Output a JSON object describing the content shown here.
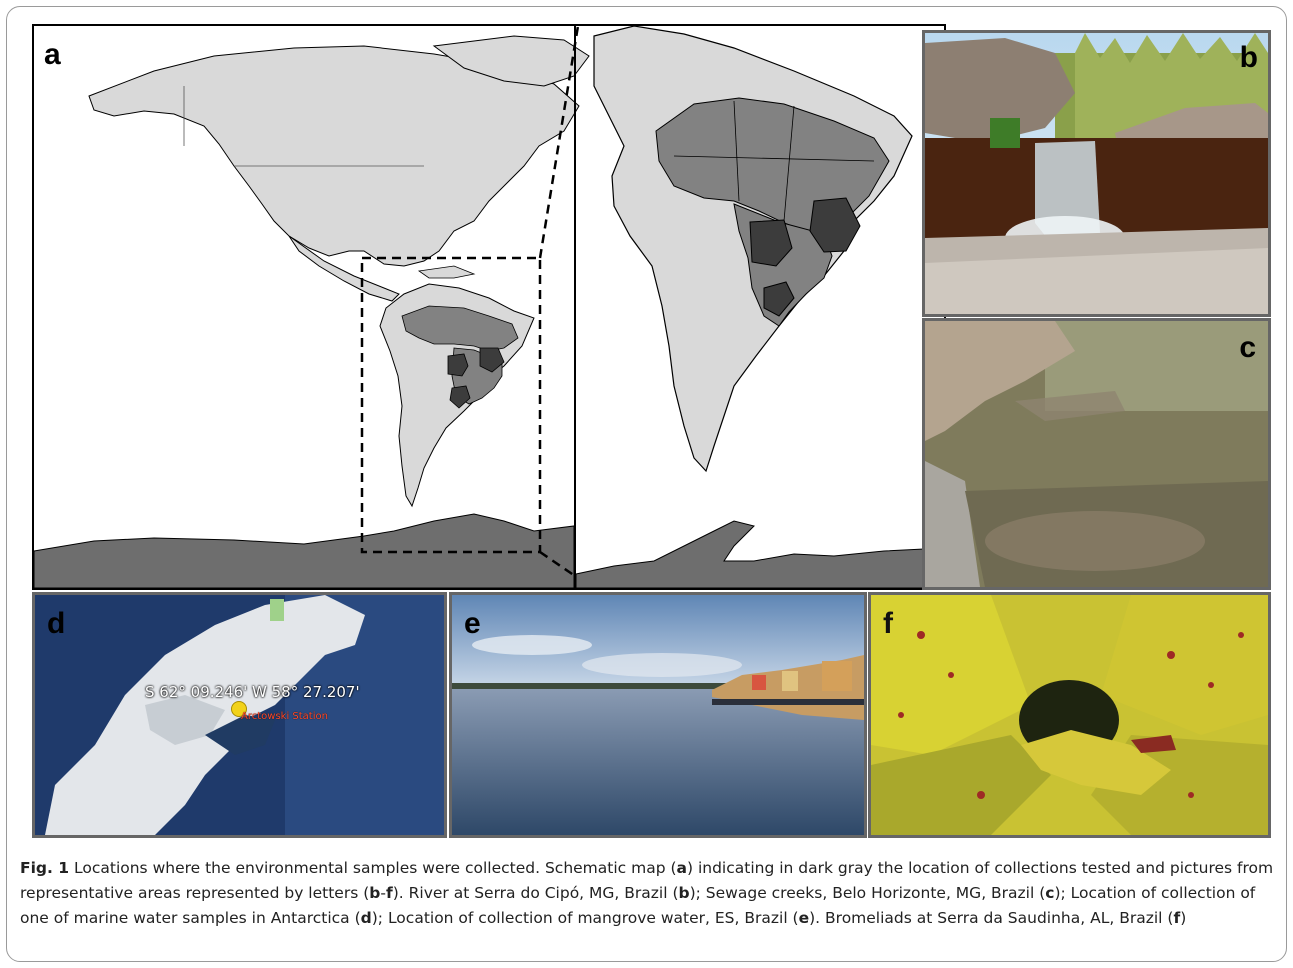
{
  "figure": {
    "panels": {
      "a": {
        "letter": "a"
      },
      "b": {
        "letter": "b"
      },
      "c": {
        "letter": "c"
      },
      "d": {
        "letter": "d",
        "coordinate_label": "S 62° 09.246' W 58° 27.207'",
        "station_label": "Arctowski Station"
      },
      "e": {
        "letter": "e"
      },
      "f": {
        "letter": "f"
      }
    },
    "colors": {
      "land_light": "#d9d9d9",
      "brazil_mid": "#828282",
      "brazil_dark": "#3c3c3c",
      "antarctica": "#6e6e6e"
    },
    "caption": {
      "label": "Fig. 1",
      "s1": " Locations where the environmental samples were collected. Schematic map (",
      "b1": "a",
      "s2": ") indicating in dark gray the location of collections tested and pictures from representative areas represented by letters (",
      "b2": "b",
      "s3": "-",
      "b3": "f",
      "s4": "). River at Serra do Cipó, MG, Brazil (",
      "b4": "b",
      "s5": "); Sewage creeks, Belo Horizonte, MG, Brazil (",
      "b5": "c",
      "s6": "); Location of collection of one of marine water samples in Antarctica (",
      "b6": "d",
      "s7": "); Location of collection of mangrove water, ES, Brazil (",
      "b7": "e",
      "s8": "). Bromeliads at Serra da Saudinha, AL, Brazil (",
      "b8": "f",
      "s9": ")"
    }
  }
}
